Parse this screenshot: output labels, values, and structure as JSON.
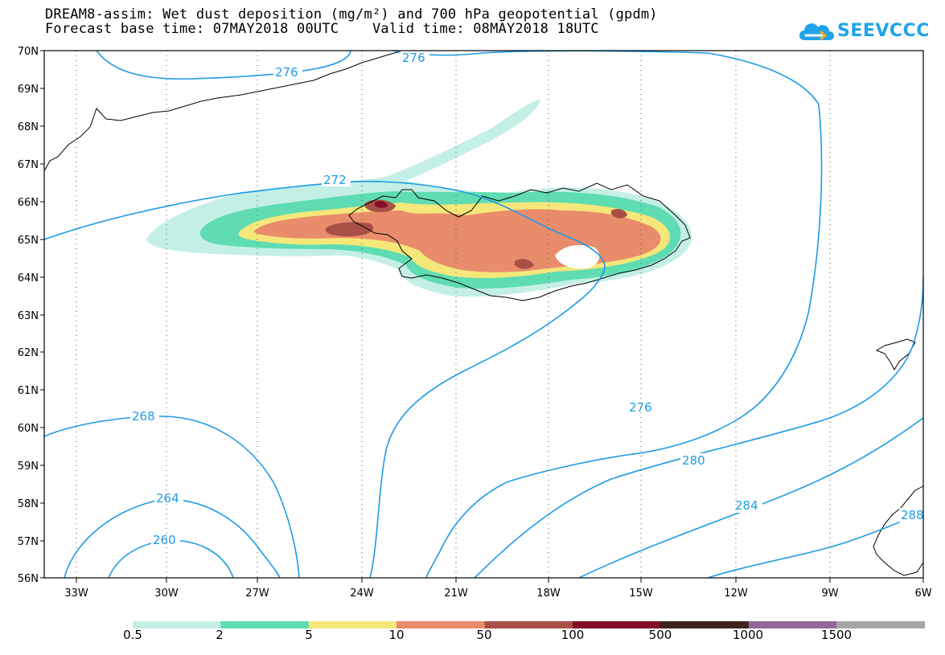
{
  "header": {
    "line1": "DREAM8-assim: Wet dust deposition (mg/m²) and 700 hPa geopotential (gpdm)",
    "line2_left": "Forecast base time: 07MAY2018 00UTC",
    "line2_right": "Valid time: 08MAY2018 18UTC"
  },
  "logo": {
    "text": "SEEVCCC",
    "icon": "cloud-icon"
  },
  "map": {
    "lat_labels": [
      "70N",
      "69N",
      "68N",
      "67N",
      "66N",
      "65N",
      "64N",
      "63N",
      "62N",
      "61N",
      "60N",
      "59N",
      "58N",
      "57N",
      "56N"
    ],
    "lon_labels": [
      "33W",
      "30W",
      "27W",
      "24W",
      "21W",
      "18W",
      "15W",
      "12W",
      "9W",
      "6W"
    ],
    "contour_labels": [
      "276",
      "276",
      "272",
      "268",
      "264",
      "260",
      "276",
      "280",
      "284",
      "288"
    ]
  },
  "colorbar": {
    "labels": [
      "0.5",
      "2",
      "5",
      "10",
      "50",
      "100",
      "500",
      "1000",
      "1500"
    ],
    "colors": [
      "#c4efe7",
      "#5fdcb2",
      "#f5e77a",
      "#e88c6b",
      "#a85046",
      "#820c2a",
      "#3a241c",
      "#936898",
      "#a6a6a6"
    ]
  },
  "colors": {
    "contour": "#1e9be6",
    "coast": "#000000"
  }
}
